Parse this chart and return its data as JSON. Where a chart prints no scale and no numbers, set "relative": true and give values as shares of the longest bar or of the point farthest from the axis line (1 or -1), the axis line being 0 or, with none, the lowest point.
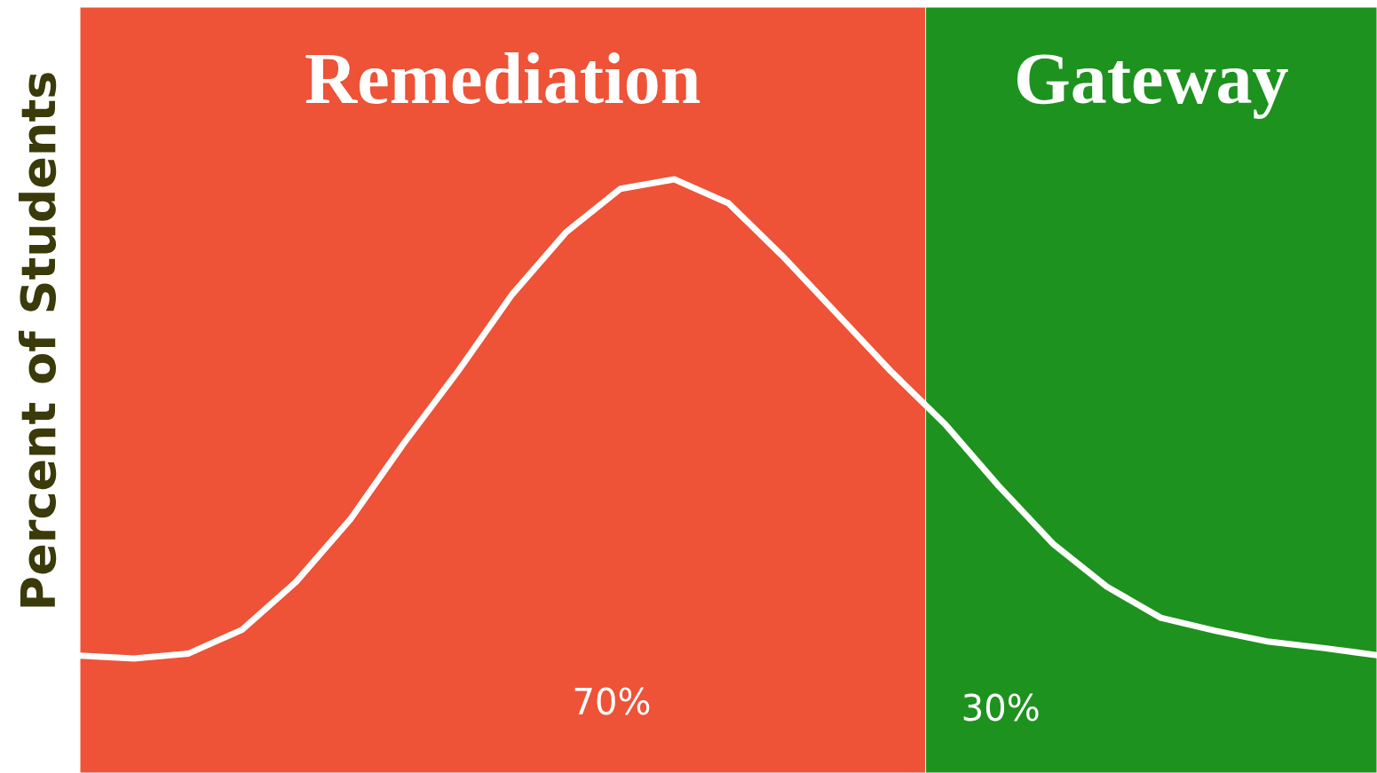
{
  "chart_data": {
    "type": "line",
    "ylabel": "Percent of Students",
    "relative": true,
    "categories": [
      null,
      null,
      null,
      null,
      null,
      null,
      null,
      null,
      null,
      null,
      null,
      null,
      null,
      null,
      null,
      null,
      null,
      null,
      null,
      null,
      null,
      null,
      null,
      null,
      null
    ],
    "series": [
      {
        "color": "#ffffff",
        "values": [
          0.006,
          0,
          0.01,
          0.06,
          0.16,
          0.29,
          0.45,
          0.6,
          0.76,
          0.89,
          0.98,
          1,
          0.95,
          0.84,
          0.72,
          0.6,
          0.49,
          0.36,
          0.24,
          0.15,
          0.085,
          0.058,
          0.035,
          0.022,
          0.007
        ]
      }
    ],
    "annotations": [
      "Remediation",
      "Gateway",
      "70%",
      "30%"
    ]
  }
}
